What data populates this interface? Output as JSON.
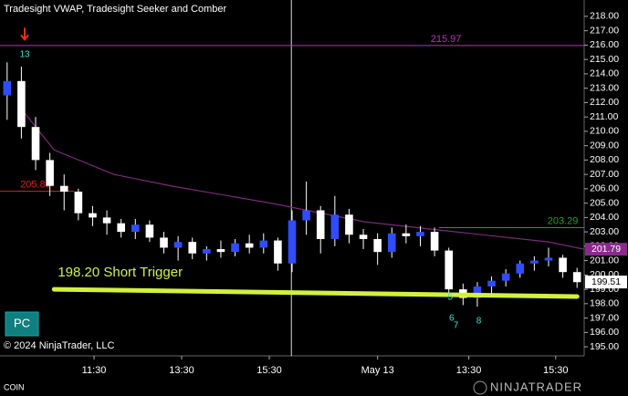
{
  "chart_data": {
    "type": "candlestick",
    "title": "Tradesight VWAP, Tradesight Seeker and Comber",
    "symbol": "COIN",
    "copyright": "© 2024 NinjaTrader, LLC",
    "button": "PC",
    "brand": "NINJATRADER",
    "up_color": "#2f4cff",
    "down_color": "#ffffff",
    "x": [
      0.5,
      1.5,
      2.5,
      3.5,
      4.5,
      5.5,
      6.5,
      7.5,
      8.5,
      9.5,
      10.5,
      11.5,
      12.5,
      13.5,
      14.5,
      15.5,
      16.5,
      17.5,
      18.5,
      19.5,
      20.5,
      21.5,
      22.5,
      23.5,
      24.5,
      25.5,
      26.5,
      27.5,
      28.5,
      29.5,
      30.5,
      31.5,
      32.5,
      33.5,
      34.5,
      35.5,
      36.5,
      37.5,
      38.5,
      39.5,
      40.5
    ],
    "open": [
      212.5,
      213.5,
      210.3,
      208.0,
      206.2,
      205.8,
      204.3,
      204.0,
      203.6,
      203.0,
      203.5,
      202.6,
      201.9,
      202.3,
      201.5,
      201.8,
      201.6,
      202.2,
      201.9,
      202.4,
      200.8,
      203.8,
      204.5,
      202.5,
      204.2,
      202.8,
      202.5,
      201.6,
      202.9,
      202.7,
      203.0,
      201.7,
      199.0,
      198.4,
      199.2,
      199.6,
      200.1,
      200.8,
      201.0,
      201.2,
      200.2
    ],
    "high": [
      214.8,
      214.5,
      211.0,
      208.5,
      207.0,
      206.0,
      204.8,
      204.5,
      203.9,
      203.9,
      203.8,
      203.0,
      202.7,
      202.6,
      202.0,
      202.4,
      202.5,
      202.8,
      202.9,
      202.6,
      204.5,
      206.5,
      204.8,
      205.5,
      204.6,
      203.2,
      202.9,
      203.3,
      203.5,
      203.4,
      203.3,
      201.9,
      199.4,
      199.5,
      199.9,
      200.4,
      201.0,
      201.3,
      201.9,
      201.4,
      200.5
    ],
    "low": [
      210.8,
      209.5,
      207.3,
      205.5,
      204.5,
      203.8,
      203.4,
      202.8,
      202.6,
      202.5,
      202.3,
      201.5,
      201.0,
      201.1,
      201.0,
      201.2,
      201.3,
      201.5,
      201.5,
      200.3,
      200.2,
      202.8,
      201.5,
      202.0,
      202.2,
      201.8,
      200.7,
      201.2,
      202.2,
      202.0,
      201.3,
      198.5,
      197.9,
      197.8,
      198.6,
      199.2,
      199.8,
      200.3,
      200.6,
      199.8,
      199.1
    ],
    "close": [
      213.5,
      210.3,
      208.0,
      206.2,
      205.8,
      204.3,
      204.0,
      203.6,
      203.0,
      203.5,
      202.6,
      201.9,
      202.3,
      201.5,
      201.8,
      201.6,
      202.2,
      201.9,
      202.4,
      200.8,
      203.8,
      204.5,
      202.5,
      204.2,
      202.8,
      202.5,
      201.6,
      202.9,
      202.7,
      203.0,
      201.7,
      199.0,
      198.4,
      199.2,
      199.6,
      200.1,
      200.8,
      201.0,
      201.2,
      200.2,
      199.5
    ],
    "xlim": [
      0,
      41
    ],
    "xticks": [
      {
        "value": 6.6,
        "label": "11:30"
      },
      {
        "value": 12.75,
        "label": "13:30"
      },
      {
        "value": 18.9,
        "label": "15:30"
      },
      {
        "value": 26.5,
        "label": "May 13"
      },
      {
        "value": 32.9,
        "label": "13:30"
      },
      {
        "value": 39.0,
        "label": "15:30"
      }
    ],
    "session_break": 20.45,
    "ylim": [
      194.37,
      219.14
    ],
    "yticks": [
      {
        "value": 195,
        "label": "195.00"
      },
      {
        "value": 196,
        "label": "196.00"
      },
      {
        "value": 197,
        "label": "197.00"
      },
      {
        "value": 198,
        "label": "198.00"
      },
      {
        "value": 199,
        "label": "199.00"
      },
      {
        "value": 200,
        "label": "200.00"
      },
      {
        "value": 201,
        "label": "201.00"
      },
      {
        "value": 202,
        "label": "202.00"
      },
      {
        "value": 203,
        "label": "203.00"
      },
      {
        "value": 204,
        "label": "204.00"
      },
      {
        "value": 205,
        "label": "205.00"
      },
      {
        "value": 206,
        "label": "206.00"
      },
      {
        "value": 207,
        "label": "207.00"
      },
      {
        "value": 208,
        "label": "208.00"
      },
      {
        "value": 209,
        "label": "209.00"
      },
      {
        "value": 210,
        "label": "210.00"
      },
      {
        "value": 211,
        "label": "211.00"
      },
      {
        "value": 212,
        "label": "212.00"
      },
      {
        "value": 213,
        "label": "213.00"
      },
      {
        "value": 214,
        "label": "214.00"
      },
      {
        "value": 215,
        "label": "215.00"
      },
      {
        "value": 216,
        "label": "216.00"
      },
      {
        "value": 217,
        "label": "217.00"
      },
      {
        "value": 218,
        "label": "218.00"
      }
    ],
    "vwap": {
      "color": "#7a2a7a",
      "x": [
        1.3,
        3.8,
        8,
        12,
        19,
        25.6,
        32,
        38.5,
        41
      ],
      "values": [
        211.8,
        208.7,
        207.0,
        206.2,
        205.0,
        203.7,
        203.0,
        202.3,
        201.79
      ]
    },
    "levels": [
      {
        "value": 215.97,
        "color": "#c030c0",
        "x": [
          0,
          41
        ],
        "label_x": 31.3
      },
      {
        "value": 205.83,
        "color": "#e02020",
        "x": [
          0,
          5.2
        ],
        "label_x": 2.5
      },
      {
        "value": 203.29,
        "color": "#20a020",
        "x": [
          30.8,
          41
        ],
        "label_x": 39.5
      }
    ],
    "price_markers": [
      {
        "value": 201.79,
        "color": "#8a2a8a",
        "text_color": "#ffffff"
      },
      {
        "value": 199.51,
        "color": "#ffffff",
        "text_color": "#000000"
      }
    ],
    "trigger": {
      "label": "198.20 Short Trigger",
      "x": [
        3.8,
        40.5
      ],
      "y": [
        199.0,
        198.5
      ],
      "color": "#d4f03c"
    },
    "arrow": {
      "x": 1.73,
      "y": 216.7,
      "color": "#e03020"
    },
    "counts": [
      {
        "label": "13",
        "x": 1.73,
        "y": 215.33,
        "color": "#40e0d0"
      },
      {
        "label": "5",
        "x": 31.6,
        "y": 198.43,
        "color": "#40e0d0"
      },
      {
        "label": "6",
        "x": 31.7,
        "y": 196.97,
        "color": "#40e0d0"
      },
      {
        "label": "7",
        "x": 32.0,
        "y": 196.46,
        "color": "#40e0d0"
      },
      {
        "label": "8",
        "x": 33.6,
        "y": 196.78,
        "color": "#40e0d0"
      }
    ]
  }
}
